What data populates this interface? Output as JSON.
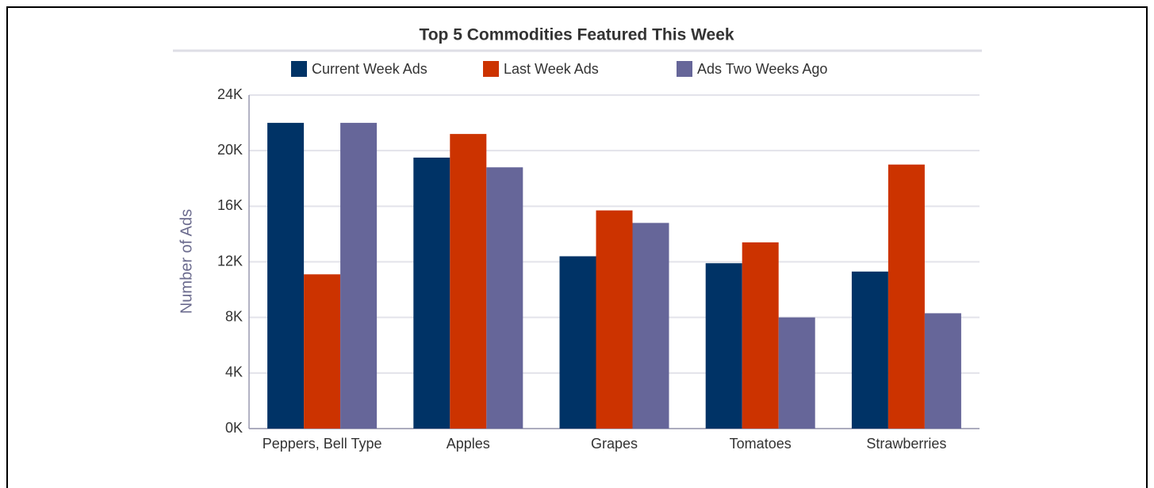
{
  "chart_data": {
    "type": "bar",
    "title": "Top 5 Commodities Featured This Week",
    "y_label": "Number of Ads",
    "categories": [
      "Peppers, Bell Type",
      "Apples",
      "Grapes",
      "Tomatoes",
      "Strawberries"
    ],
    "series": [
      {
        "name": "Current Week Ads",
        "color": "#003366",
        "values": [
          22000,
          19500,
          12400,
          11900,
          11300
        ]
      },
      {
        "name": "Last Week Ads",
        "color": "#cc3300",
        "values": [
          11100,
          21200,
          15700,
          13400,
          19000
        ]
      },
      {
        "name": "Ads Two Weeks Ago",
        "color": "#666699",
        "values": [
          22000,
          18800,
          14800,
          8000,
          8300
        ]
      }
    ],
    "ylim": [
      0,
      24000
    ],
    "yticks": [
      {
        "value": 0,
        "label": "0K"
      },
      {
        "value": 4000,
        "label": "4K"
      },
      {
        "value": 8000,
        "label": "8K"
      },
      {
        "value": 12000,
        "label": "12K"
      },
      {
        "value": 16000,
        "label": "16K"
      },
      {
        "value": 20000,
        "label": "20K"
      },
      {
        "value": 24000,
        "label": "24K"
      }
    ],
    "grid": true,
    "legend": "top"
  }
}
